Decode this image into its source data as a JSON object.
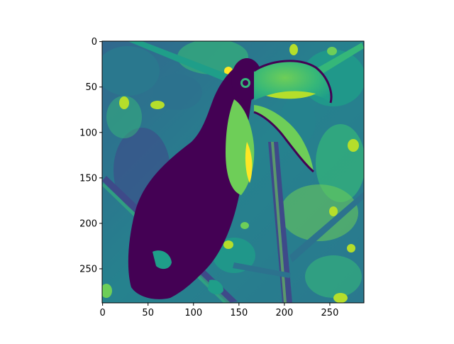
{
  "chart_data": {
    "type": "heatmap",
    "title": "",
    "xlabel": "",
    "ylabel": "",
    "colormap": "viridis",
    "xlim": [
      -0.5,
      287.5
    ],
    "ylim": [
      287.5,
      -0.5
    ],
    "x_ticks": [
      0,
      50,
      100,
      150,
      200,
      250
    ],
    "y_ticks": [
      0,
      50,
      100,
      150,
      200,
      250
    ],
    "x_tick_labels": [
      "0",
      "50",
      "100",
      "150",
      "200",
      "250"
    ],
    "y_tick_labels": [
      "0",
      "50",
      "100",
      "150",
      "200",
      "250"
    ],
    "image_subject": "toucan perched on a branch among leaves, rendered as a single-channel intensity image",
    "grid": false,
    "legend": "none"
  },
  "colors": {
    "background": "#440154",
    "dark": "#482878",
    "mid_dark": "#31688e",
    "mid": "#26828e",
    "mid_light": "#35b779",
    "light": "#6ece58",
    "bright": "#b5de2b",
    "brightest": "#fde725",
    "axis": "#000000"
  }
}
